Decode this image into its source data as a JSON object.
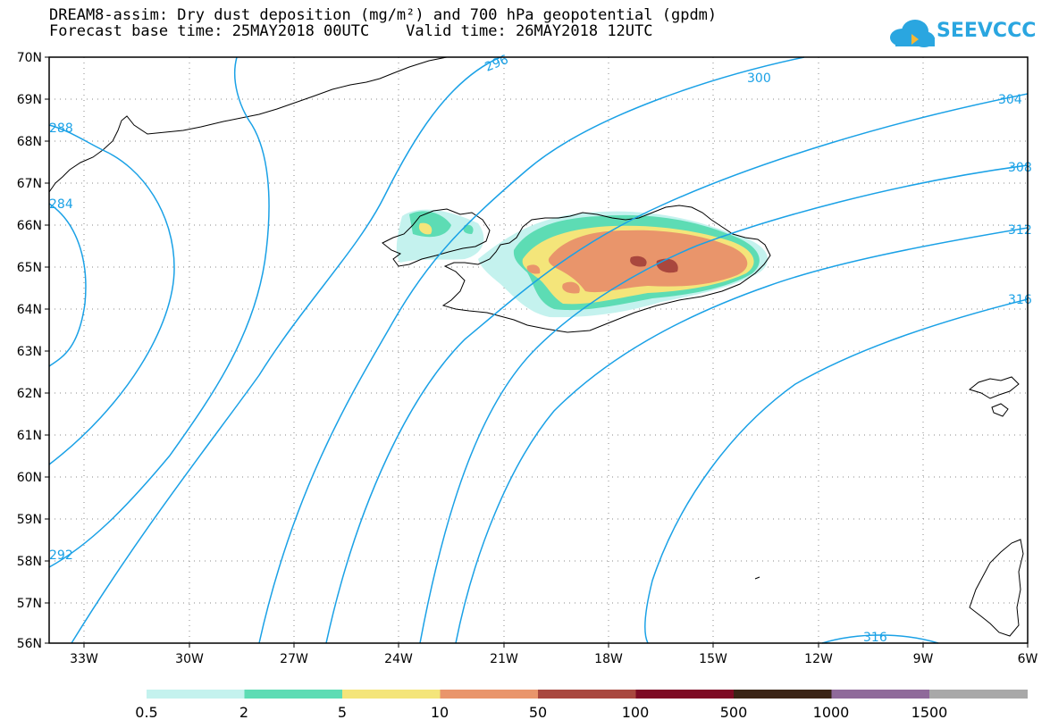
{
  "title": {
    "line1": "DREAM8-assim: Dry dust deposition (mg/m²) and 700 hPa geopotential (gpdm)",
    "line2": "Forecast base time: 25MAY2018 00UTC    Valid time: 26MAY2018 12UTC"
  },
  "logo": {
    "text": "SEEVCCC",
    "color": "#2aa6e0"
  },
  "map": {
    "lon_range": [
      -34,
      -6
    ],
    "lat_range": [
      56,
      70
    ],
    "grid": true,
    "lat_labels": [
      "70N",
      "69N",
      "68N",
      "67N",
      "66N",
      "65N",
      "64N",
      "63N",
      "62N",
      "61N",
      "60N",
      "59N",
      "58N",
      "57N",
      "56N"
    ],
    "lon_labels": [
      "33W",
      "30W",
      "27W",
      "24W",
      "21W",
      "18W",
      "15W",
      "12W",
      "9W",
      "6W"
    ],
    "contour_color": "#1aa1e6",
    "contour_labels": [
      "288",
      "284",
      "296",
      "300",
      "304",
      "308",
      "312",
      "316",
      "292",
      "316"
    ]
  },
  "colorbar": {
    "labels": [
      "0.5",
      "2",
      "5",
      "10",
      "50",
      "100",
      "500",
      "1000",
      "1500"
    ],
    "colors": [
      "#c4f2ee",
      "#5ddcb4",
      "#f4e57a",
      "#e9956b",
      "#a9473e",
      "#7e0a24",
      "#3a2415",
      "#8f6a9a",
      "#a8a8a8"
    ]
  }
}
